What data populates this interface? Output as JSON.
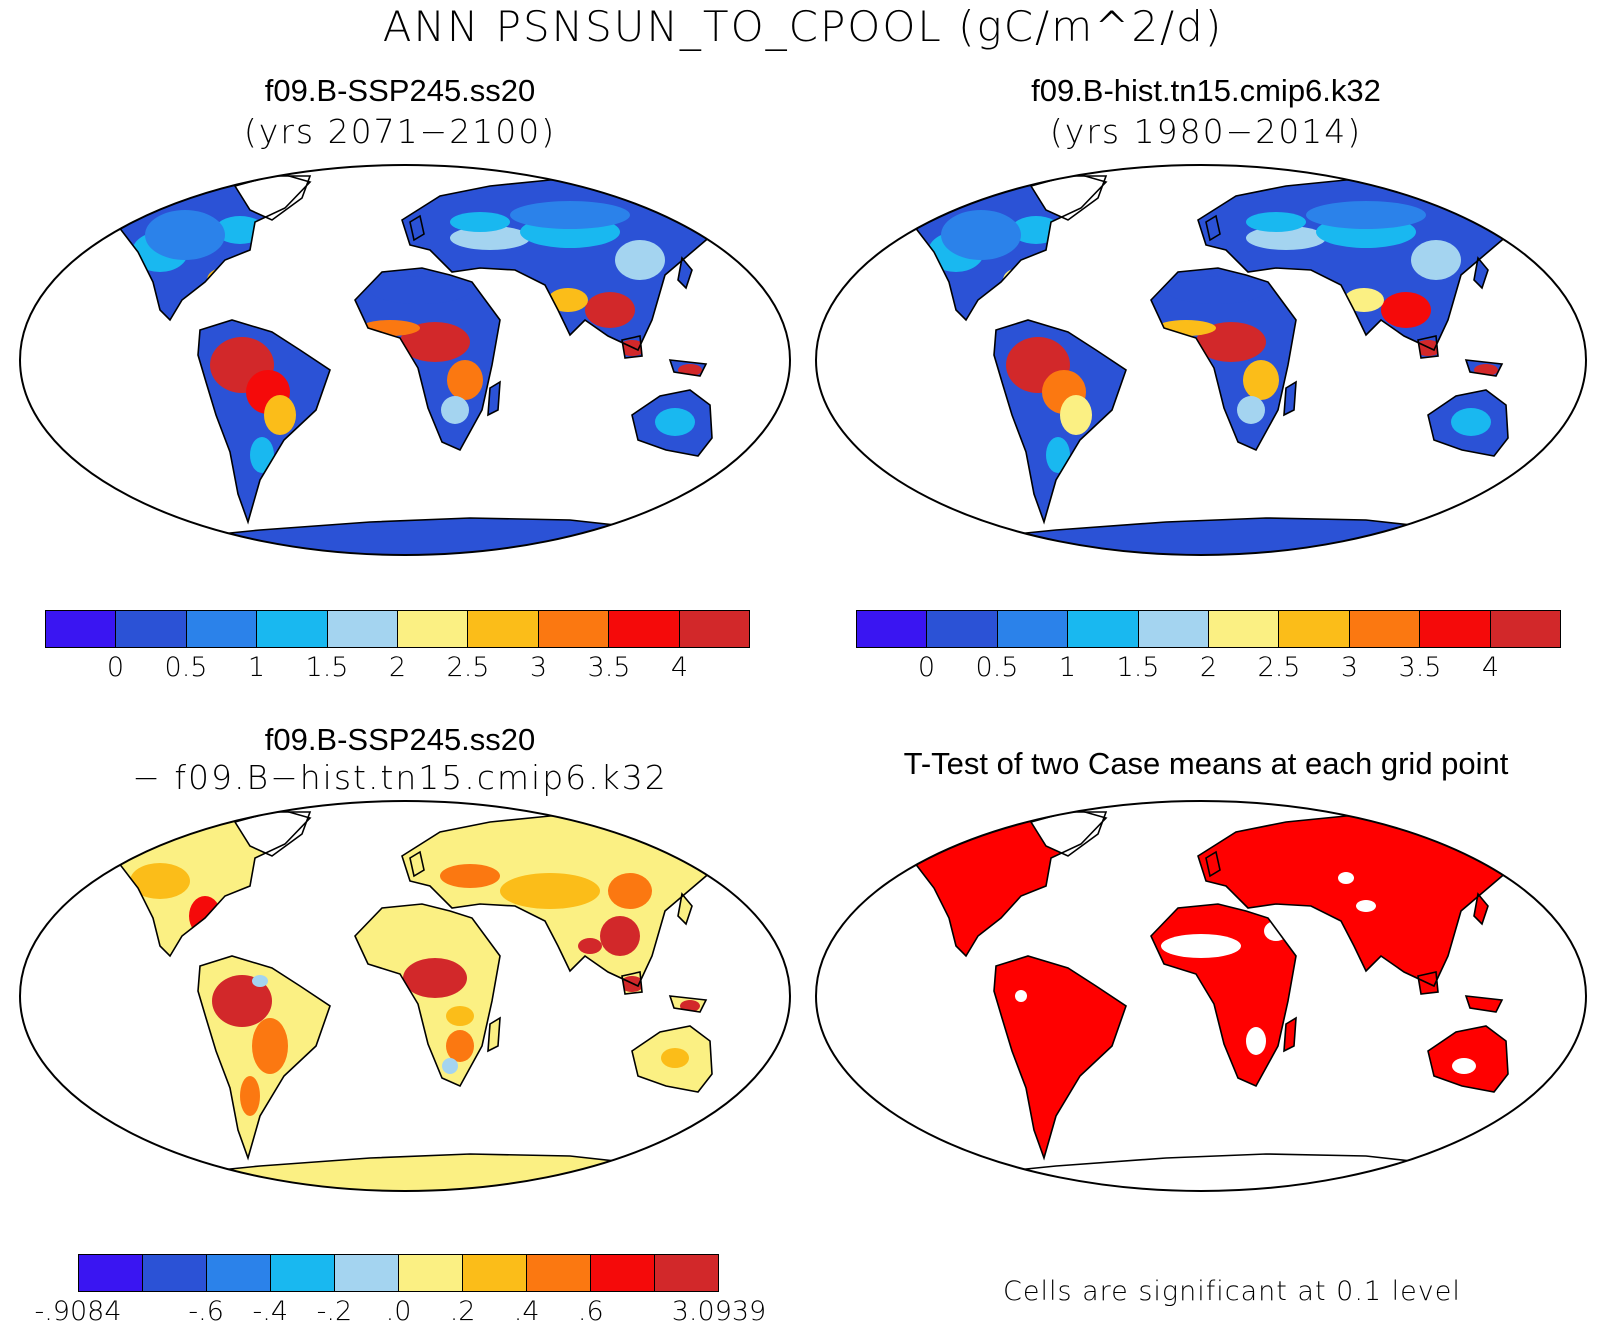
{
  "title": "ANN PSNSUN_TO_CPOOL (gC/m^2/d)",
  "panels": [
    {
      "title": "f09.B-SSP245.ss20",
      "subtitle": "(yrs 2071−2100)"
    },
    {
      "title": "f09.B-hist.tn15.cmip6.k32",
      "subtitle": "(yrs 1980−2014)"
    },
    {
      "title": "f09.B-SSP245.ss20",
      "subtitle": "− f09.B−hist.tn15.cmip6.k32"
    },
    {
      "title": "T-Test of two Case means at each grid point",
      "subtitle": ""
    }
  ],
  "colorbar_main": {
    "colors": [
      "#3a15f2",
      "#2b52d6",
      "#2b82ea",
      "#19b8f0",
      "#a4d4f0",
      "#fbf083",
      "#fbbd19",
      "#fb7811",
      "#f50a0a",
      "#d2282a"
    ],
    "labels": [
      "0",
      "0.5",
      "1",
      "1.5",
      "2",
      "2.5",
      "3",
      "3.5",
      "4"
    ]
  },
  "colorbar_diff": {
    "colors": [
      "#3a15f2",
      "#2b52d6",
      "#2b82ea",
      "#19b8f0",
      "#a4d4f0",
      "#fbf083",
      "#fbbd19",
      "#fb7811",
      "#f50a0a",
      "#d2282a"
    ],
    "labels": [
      "-.9084",
      "-.6",
      "-.4",
      "-.2",
      ".0",
      ".2",
      ".4",
      ".6",
      "3.0939"
    ]
  },
  "note": "Cells are significant at 0.1 level",
  "colors": {
    "ttest_significant": "#ff0000",
    "ocean": "#ffffff",
    "coast": "#000000"
  }
}
